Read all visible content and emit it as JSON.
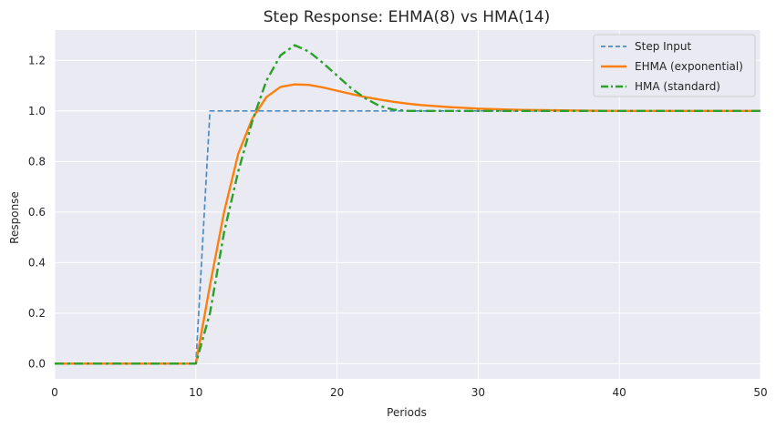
{
  "chart_data": {
    "type": "line",
    "title": "Step Response: EHMA(8) vs HMA(14)",
    "xlabel": "Periods",
    "ylabel": "Response",
    "xlim": [
      0,
      50
    ],
    "ylim": [
      -0.06,
      1.32
    ],
    "xticks": [
      0,
      10,
      20,
      30,
      40,
      50
    ],
    "yticks": [
      0.0,
      0.2,
      0.4,
      0.6,
      0.8,
      1.0,
      1.2
    ],
    "xtick_labels": [
      "0",
      "10",
      "20",
      "30",
      "40",
      "50"
    ],
    "ytick_labels": [
      "0.0",
      "0.2",
      "0.4",
      "0.6",
      "0.8",
      "1.0",
      "1.2"
    ],
    "grid": true,
    "legend_position": "top-right",
    "background": "#eaeaf2",
    "series": [
      {
        "name": "Step Input",
        "color": "#4c8cbf",
        "style": "dashed",
        "x": [
          0,
          10,
          11,
          50
        ],
        "y": [
          0,
          0,
          1,
          1
        ]
      },
      {
        "name": "EHMA (exponential)",
        "color": "#ff7f0e",
        "style": "solid",
        "x": [
          0,
          10,
          11,
          12,
          13,
          14,
          15,
          16,
          17,
          18,
          19,
          20,
          21,
          22,
          23,
          24,
          25,
          26,
          28,
          30,
          33,
          36,
          40,
          45,
          50
        ],
        "y": [
          0,
          0,
          0.31,
          0.6,
          0.83,
          0.97,
          1.055,
          1.095,
          1.105,
          1.103,
          1.093,
          1.08,
          1.067,
          1.055,
          1.045,
          1.036,
          1.029,
          1.023,
          1.015,
          1.009,
          1.004,
          1.002,
          1.0,
          1.0,
          1.0
        ]
      },
      {
        "name": "HMA (standard)",
        "color": "#2ca02c",
        "style": "dashdot",
        "x": [
          0,
          10,
          11,
          12,
          13,
          14,
          15,
          16,
          17,
          18,
          19,
          20,
          21,
          22,
          23,
          24,
          25,
          26,
          28,
          30,
          35,
          40,
          45,
          50
        ],
        "y": [
          0,
          0,
          0.2,
          0.52,
          0.76,
          0.96,
          1.12,
          1.22,
          1.26,
          1.235,
          1.19,
          1.14,
          1.09,
          1.05,
          1.02,
          1.005,
          1.0,
          1.0,
          1.0,
          1.0,
          1.0,
          1.0,
          1.0,
          1.0
        ]
      }
    ]
  }
}
